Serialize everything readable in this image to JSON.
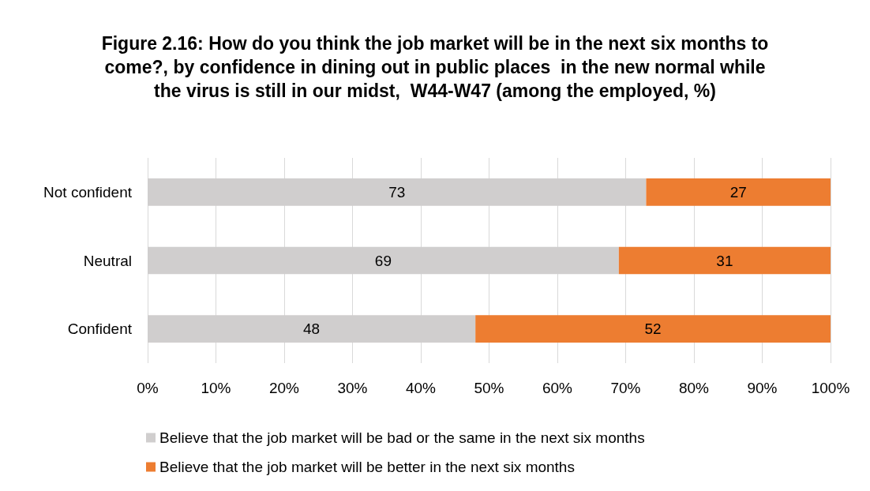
{
  "chart_data": {
    "type": "bar",
    "orientation": "horizontal",
    "stacked": true,
    "title": "Figure 2.16: How do you think the job market will be in the next six months to come?, by confidence in dining out in public places  in the new normal while the virus is still in our midst,  W44-W47 (among the employed, %)",
    "categories": [
      "Not confident",
      "Neutral",
      "Confident"
    ],
    "series": [
      {
        "name": "Believe that the job market will be bad or the same in the next six months",
        "color": "#d0cece",
        "values": [
          73,
          69,
          48
        ]
      },
      {
        "name": "Believe that the job market will be better in the next six months",
        "color": "#ed7d31",
        "values": [
          27,
          31,
          52
        ]
      }
    ],
    "xlim": [
      0,
      100
    ],
    "xticks": [
      {
        "value": 0,
        "label": "0%"
      },
      {
        "value": 10,
        "label": "10%"
      },
      {
        "value": 20,
        "label": "20%"
      },
      {
        "value": 30,
        "label": "30%"
      },
      {
        "value": 40,
        "label": "40%"
      },
      {
        "value": 50,
        "label": "50%"
      },
      {
        "value": 60,
        "label": "60%"
      },
      {
        "value": 70,
        "label": "70%"
      },
      {
        "value": 80,
        "label": "80%"
      },
      {
        "value": 90,
        "label": "90%"
      },
      {
        "value": 100,
        "label": "100%"
      }
    ],
    "data_labels": true,
    "grid": "x",
    "legend": "bottom"
  }
}
